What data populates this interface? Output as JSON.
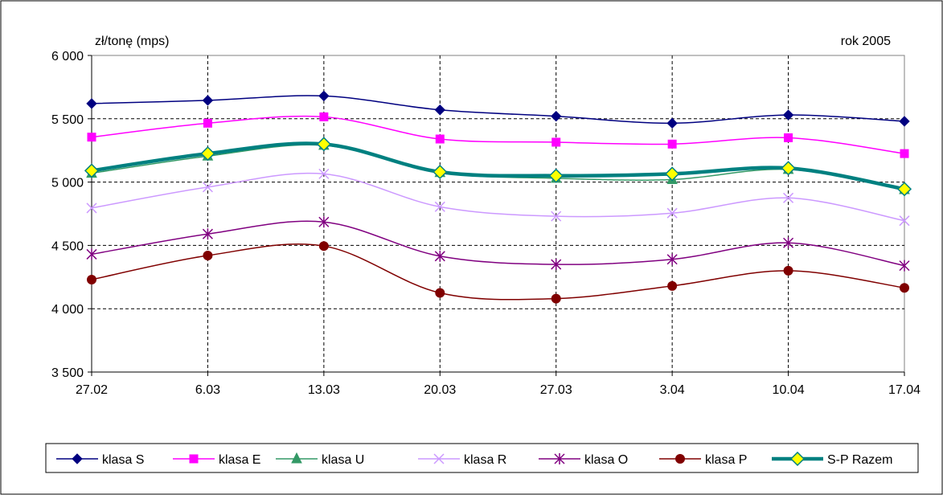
{
  "chart_data": {
    "type": "line",
    "ylabel": "zł/tonę (mps)",
    "annotation": "rok 2005",
    "categories": [
      "27.02",
      "6.03",
      "13.03",
      "20.03",
      "27.03",
      "3.04",
      "10.04",
      "17.04"
    ],
    "ylim": [
      3500,
      6000
    ],
    "yticks": [
      3500,
      4000,
      4500,
      5000,
      5500,
      6000
    ],
    "ytick_labels": [
      "3 500",
      "4 000",
      "4 500",
      "5 000",
      "5 500",
      "6 000"
    ],
    "grid": true,
    "smooth": true,
    "legend_position": "bottom",
    "series": [
      {
        "name": "klasa S",
        "color": "#000080",
        "marker": "diamond",
        "values": [
          5620,
          5645,
          5680,
          5570,
          5520,
          5465,
          5530,
          5480
        ]
      },
      {
        "name": "klasa E",
        "color": "#ff00ff",
        "marker": "square",
        "values": [
          5355,
          5465,
          5515,
          5340,
          5315,
          5300,
          5350,
          5225
        ]
      },
      {
        "name": "klasa U",
        "color": "#339966",
        "marker": "triangle",
        "values": [
          5070,
          5205,
          5290,
          5075,
          5030,
          5020,
          5100,
          4940
        ]
      },
      {
        "name": "klasa R",
        "color": "#cc99ff",
        "marker": "x",
        "values": [
          4795,
          4960,
          5065,
          4805,
          4730,
          4755,
          4875,
          4695
        ]
      },
      {
        "name": "klasa O",
        "color": "#800080",
        "marker": "star",
        "values": [
          4430,
          4590,
          4685,
          4415,
          4350,
          4390,
          4520,
          4340
        ]
      },
      {
        "name": "klasa P",
        "color": "#800000",
        "marker": "circle",
        "values": [
          4230,
          4420,
          4495,
          4125,
          4080,
          4180,
          4300,
          4165
        ]
      },
      {
        "name": "S-P Razem",
        "color": "#008080",
        "marker": "diamond-yellow",
        "values": [
          5090,
          5225,
          5300,
          5080,
          5050,
          5065,
          5110,
          4945
        ]
      }
    ]
  }
}
